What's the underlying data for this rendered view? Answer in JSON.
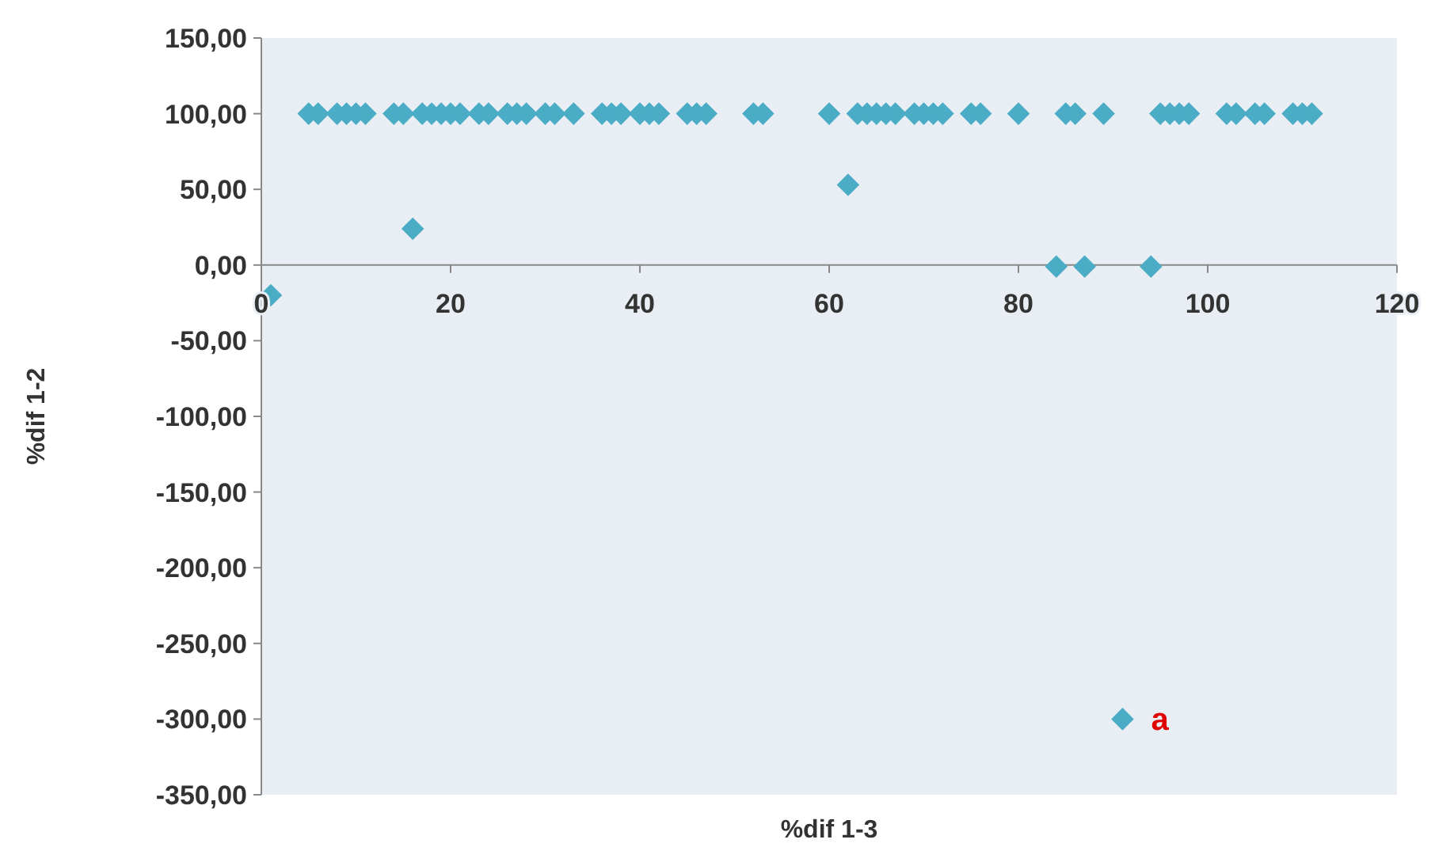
{
  "chart_data": {
    "type": "scatter",
    "xlabel": "%dif 1-3",
    "ylabel": "%dif 1-2",
    "xlim": [
      0,
      120
    ],
    "xticks": [
      0,
      20,
      40,
      60,
      80,
      100,
      120
    ],
    "ylim": [
      -350,
      150
    ],
    "yticks": [
      {
        "value": 150,
        "label": "150,00"
      },
      {
        "value": 100,
        "label": "100,00"
      },
      {
        "value": 50,
        "label": "50,00"
      },
      {
        "value": 0,
        "label": "0,00"
      },
      {
        "value": -50,
        "label": "-50,00"
      },
      {
        "value": -100,
        "label": "-100,00"
      },
      {
        "value": -150,
        "label": "-150,00"
      },
      {
        "value": -200,
        "label": "-200,00"
      },
      {
        "value": -250,
        "label": "-250,00"
      },
      {
        "value": -300,
        "label": "-300,00"
      },
      {
        "value": -350,
        "label": "-350,00"
      }
    ],
    "marker": "diamond",
    "grid": false,
    "series": [
      {
        "color": "#4bacc6",
        "x": [
          1,
          16,
          62,
          84,
          87,
          94,
          91,
          5,
          6,
          8,
          9,
          10,
          11,
          14,
          15,
          17,
          18,
          19,
          20,
          21,
          23,
          24,
          26,
          27,
          28,
          30,
          31,
          33,
          36,
          37,
          38,
          40,
          41,
          42,
          45,
          46,
          47,
          52,
          53,
          60,
          63,
          64,
          65,
          66,
          67,
          69,
          70,
          71,
          72,
          75,
          76,
          80,
          85,
          86,
          89,
          95,
          96,
          97,
          98,
          102,
          103,
          105,
          106,
          109,
          110,
          111
        ],
        "values": [
          -20,
          24,
          53,
          -1,
          -1,
          -1,
          -300,
          100,
          100,
          100,
          100,
          100,
          100,
          100,
          100,
          100,
          100,
          100,
          100,
          100,
          100,
          100,
          100,
          100,
          100,
          100,
          100,
          100,
          100,
          100,
          100,
          100,
          100,
          100,
          100,
          100,
          100,
          100,
          100,
          100,
          100,
          100,
          100,
          100,
          100,
          100,
          100,
          100,
          100,
          100,
          100,
          100,
          100,
          100,
          100,
          100,
          100,
          100,
          100,
          100,
          100,
          100,
          100,
          100,
          100,
          100
        ]
      }
    ],
    "annotations": [
      {
        "text": "a",
        "x": 91,
        "y": -300
      }
    ]
  }
}
